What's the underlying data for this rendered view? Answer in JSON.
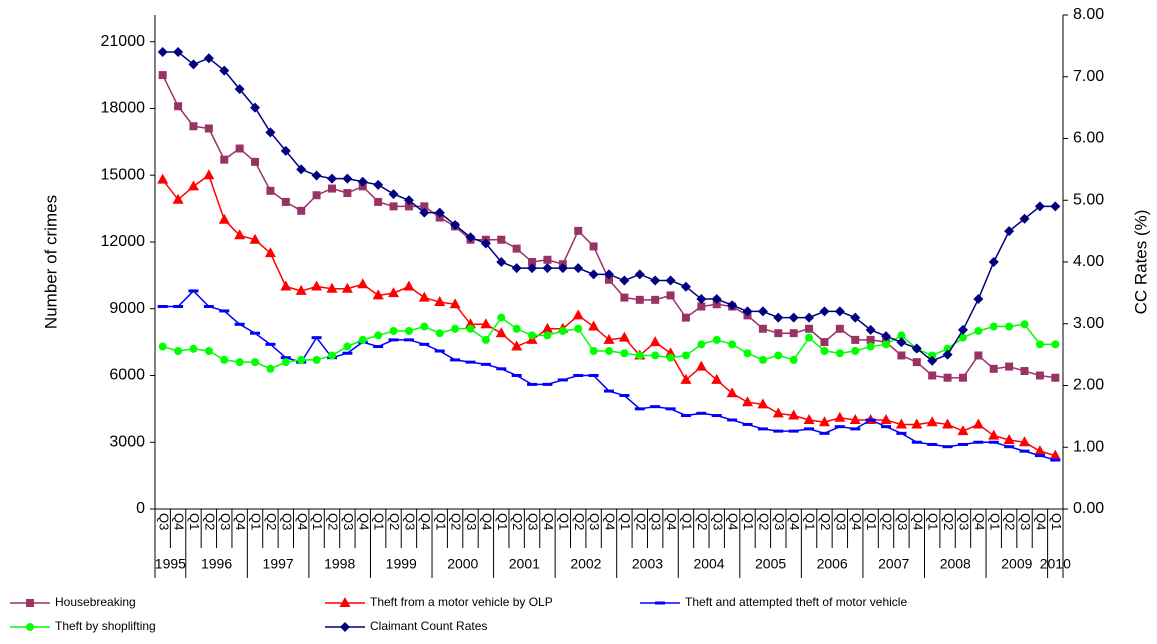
{
  "chart_data": {
    "type": "line",
    "y_label": "Number of crimes",
    "y2_label": "CC Rates (%)",
    "categories": [
      "Q3",
      "Q4",
      "Q1",
      "Q2",
      "Q3",
      "Q4",
      "Q1",
      "Q2",
      "Q3",
      "Q4",
      "Q1",
      "Q2",
      "Q3",
      "Q4",
      "Q1",
      "Q2",
      "Q3",
      "Q4",
      "Q1",
      "Q2",
      "Q3",
      "Q4",
      "Q1",
      "Q2",
      "Q3",
      "Q4",
      "Q1",
      "Q2",
      "Q3",
      "Q4",
      "Q1",
      "Q2",
      "Q3",
      "Q4",
      "Q1",
      "Q2",
      "Q3",
      "Q4",
      "Q1",
      "Q2",
      "Q3",
      "Q4",
      "Q1",
      "Q2",
      "Q3",
      "Q4",
      "Q1",
      "Q2",
      "Q3",
      "Q4",
      "Q1",
      "Q2",
      "Q3",
      "Q4",
      "Q1",
      "Q2",
      "Q3",
      "Q4",
      "Q1"
    ],
    "years": [
      "1995",
      "1996",
      "1997",
      "1998",
      "1999",
      "2000",
      "2001",
      "2002",
      "2003",
      "2004",
      "2005",
      "2006",
      "2007",
      "2008",
      "2009",
      "2010"
    ],
    "ylim": [
      0,
      22200
    ],
    "yticks": [
      0,
      3000,
      6000,
      9000,
      12000,
      15000,
      18000,
      21000
    ],
    "y2lim": [
      0,
      8
    ],
    "y2ticks": [
      {
        "value": 0,
        "label": "0.00"
      },
      {
        "value": 1,
        "label": "1.00"
      },
      {
        "value": 2,
        "label": "2.00"
      },
      {
        "value": 3,
        "label": "3.00"
      },
      {
        "value": 4,
        "label": "4.00"
      },
      {
        "value": 5,
        "label": "5.00"
      },
      {
        "value": 6,
        "label": "6.00"
      },
      {
        "value": 7,
        "label": "7.00"
      },
      {
        "value": 8,
        "label": "8.00"
      }
    ],
    "grid": false,
    "legend": "bottom",
    "series": [
      {
        "name": "Housebreaking",
        "color": "#993366",
        "marker": "square",
        "values": [
          19500,
          18100,
          17200,
          17100,
          15700,
          16200,
          15600,
          14300,
          13800,
          13400,
          14100,
          14400,
          14200,
          14500,
          13800,
          13600,
          13600,
          13600,
          13100,
          12700,
          12100,
          12100,
          12100,
          11700,
          11100,
          11200,
          11000,
          12500,
          11800,
          10300,
          9500,
          9400,
          9400,
          9600,
          8600,
          9100,
          9200,
          9100,
          8700,
          8100,
          7900,
          7900,
          8100,
          7500,
          8100,
          7600,
          7600,
          7500,
          6900,
          6600,
          6000,
          5900,
          5900,
          6900,
          6300,
          6400,
          6200,
          6000,
          5900
        ]
      },
      {
        "name": "Theft from a motor vehicle by OLP",
        "color": "#ff0000",
        "marker": "triangle",
        "values": [
          14800,
          13900,
          14500,
          15000,
          13000,
          12300,
          12100,
          11500,
          10000,
          9800,
          10000,
          9900,
          9900,
          10100,
          9600,
          9700,
          10000,
          9500,
          9300,
          9200,
          8300,
          8300,
          7900,
          7300,
          7600,
          8100,
          8100,
          8700,
          8200,
          7600,
          7700,
          6900,
          7500,
          7000,
          5800,
          6400,
          5800,
          5200,
          4800,
          4700,
          4300,
          4200,
          4000,
          3900,
          4100,
          4000,
          4000,
          4000,
          3800,
          3800,
          3900,
          3800,
          3500,
          3800,
          3300,
          3100,
          3000,
          2600,
          2400
        ]
      },
      {
        "name": "Theft and attempted theft of motor vehicle",
        "color": "#0000ff",
        "marker": "dash",
        "values": [
          9100,
          9100,
          9800,
          9100,
          8900,
          8300,
          7900,
          7400,
          6800,
          6600,
          7700,
          6800,
          7000,
          7500,
          7300,
          7600,
          7600,
          7400,
          7100,
          6700,
          6600,
          6500,
          6300,
          6000,
          5600,
          5600,
          5800,
          6000,
          6000,
          5300,
          5100,
          4500,
          4600,
          4500,
          4200,
          4300,
          4200,
          4000,
          3800,
          3600,
          3500,
          3500,
          3600,
          3400,
          3700,
          3600,
          4000,
          3700,
          3400,
          3000,
          2900,
          2800,
          2900,
          3000,
          3000,
          2800,
          2600,
          2400,
          2200
        ]
      },
      {
        "name": "Theft by shoplifting",
        "color": "#00ff00",
        "marker": "circle",
        "values": [
          7300,
          7100,
          7200,
          7100,
          6700,
          6600,
          6600,
          6300,
          6600,
          6700,
          6700,
          6900,
          7300,
          7600,
          7800,
          8000,
          8000,
          8200,
          7900,
          8100,
          8100,
          7600,
          8600,
          8100,
          7800,
          7800,
          8000,
          8100,
          7100,
          7100,
          7000,
          6900,
          6900,
          6800,
          6900,
          7400,
          7600,
          7400,
          7000,
          6700,
          6900,
          6700,
          7700,
          7100,
          7000,
          7100,
          7300,
          7400,
          7800,
          7200,
          6900,
          7200,
          7700,
          8000,
          8200,
          8200,
          8300,
          7400,
          7400
        ]
      },
      {
        "name": "Claimant Count Rates",
        "color": "#000080",
        "marker": "diamond",
        "axis": "y2",
        "values": [
          7.4,
          7.4,
          7.2,
          7.3,
          7.1,
          6.8,
          6.5,
          6.1,
          5.8,
          5.5,
          5.4,
          5.35,
          5.35,
          5.3,
          5.25,
          5.1,
          5.0,
          4.8,
          4.8,
          4.6,
          4.4,
          4.3,
          4.0,
          3.9,
          3.9,
          3.9,
          3.9,
          3.9,
          3.8,
          3.8,
          3.7,
          3.8,
          3.7,
          3.7,
          3.6,
          3.4,
          3.4,
          3.3,
          3.2,
          3.2,
          3.1,
          3.1,
          3.1,
          3.2,
          3.2,
          3.1,
          2.9,
          2.8,
          2.7,
          2.6,
          2.4,
          2.5,
          2.9,
          3.4,
          4.0,
          4.5,
          4.7,
          4.9,
          4.9
        ]
      }
    ]
  }
}
